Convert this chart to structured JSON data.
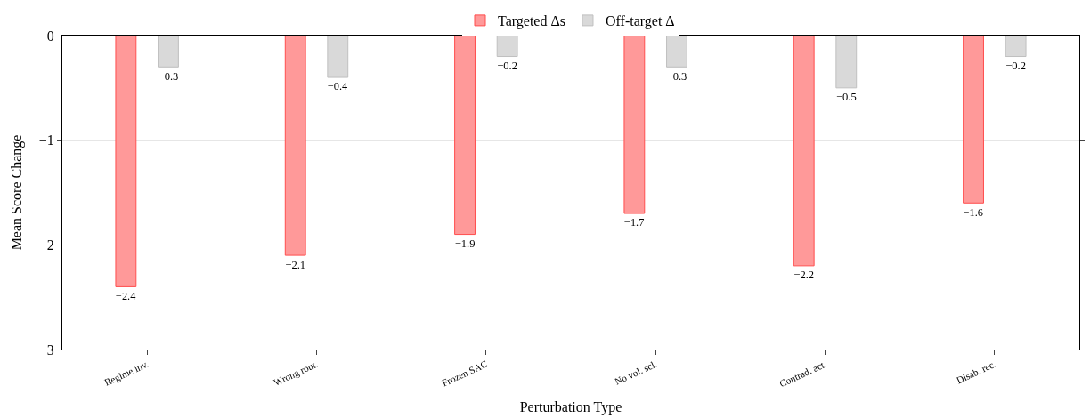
{
  "chart_data": {
    "type": "bar",
    "xlabel": "Perturbation Type",
    "ylabel": "Mean Score Change",
    "categories": [
      "Regime inv.",
      "Wrong rout.",
      "Frozen SAC",
      "No vol. scl.",
      "Contrad. act.",
      "Disab. rec."
    ],
    "series": [
      {
        "name": "Targeted Δs",
        "color": "#ff9999",
        "values": [
          -2.4,
          -2.1,
          -1.9,
          -1.7,
          -2.2,
          -1.6
        ]
      },
      {
        "name": "Off-target Δ",
        "color": "#d9d9d9",
        "values": [
          -0.3,
          -0.4,
          -0.2,
          -0.3,
          -0.5,
          -0.2
        ]
      }
    ],
    "ylim": [
      -3,
      0
    ],
    "yticks": [
      0,
      {
        "value": -1,
        "label": "−1"
      },
      {
        "value": -2,
        "label": "−2"
      },
      {
        "value": -3,
        "label": "−3"
      }
    ],
    "grid": "y",
    "legend": "top",
    "data_labels": true
  }
}
